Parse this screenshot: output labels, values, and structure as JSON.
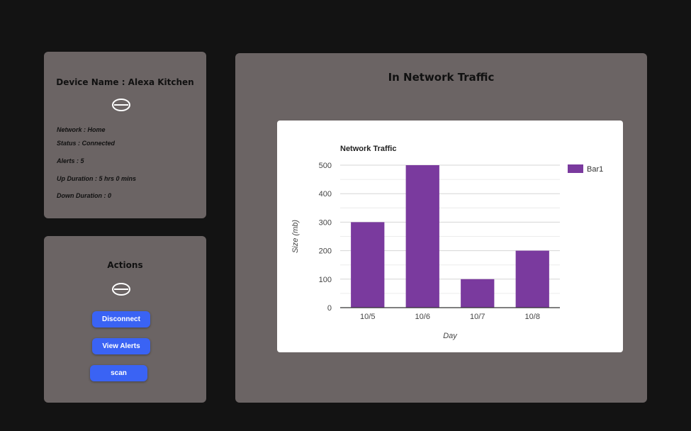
{
  "device": {
    "title": "Device Name : Alexa Kitchen",
    "icon": "device-icon",
    "network": "Network : Home",
    "status": "Status : Connected",
    "alerts": "Alerts : 5",
    "up_duration": "Up Duration : 5 hrs 0 mins",
    "down_duration": "Down Duration : 0"
  },
  "actions": {
    "title": "Actions",
    "icon": "device-icon",
    "disconnect_label": "Disconnect",
    "view_alerts_label": "View Alerts",
    "scan_label": "scan"
  },
  "traffic": {
    "title": "In Network Traffic"
  },
  "chart_data": {
    "type": "bar",
    "title": "Network Traffic",
    "categories": [
      "10/5",
      "10/6",
      "10/7",
      "10/8"
    ],
    "series": [
      {
        "name": "Bar1",
        "values": [
          300,
          500,
          100,
          200
        ],
        "color": "#7a3a9e"
      }
    ],
    "xlabel": "Day",
    "ylabel": "Size (mb)",
    "ylim": [
      0,
      500
    ],
    "yticks": [
      0,
      100,
      200,
      300,
      400,
      500
    ],
    "grid": true,
    "legend": "right"
  }
}
